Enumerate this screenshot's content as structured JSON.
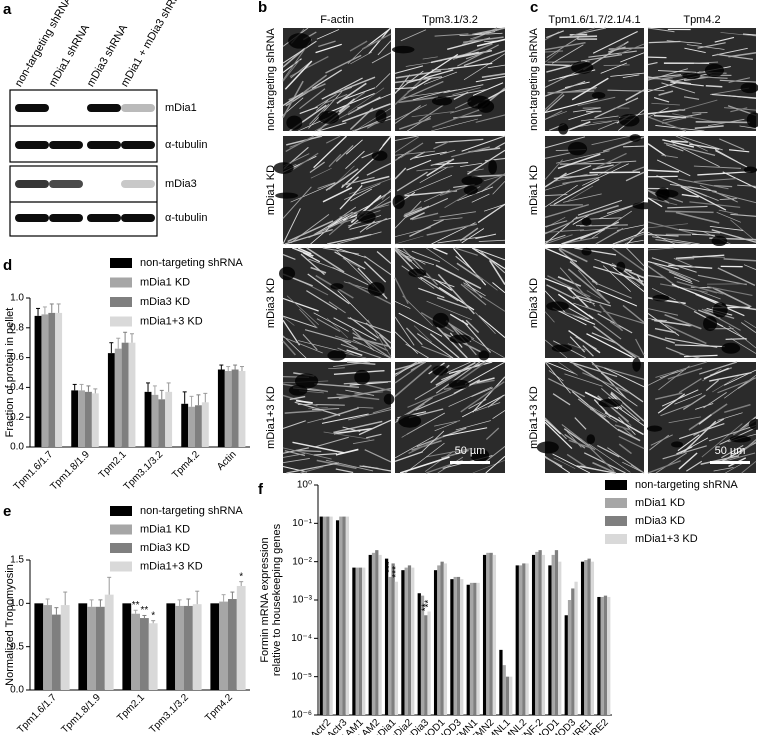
{
  "panels": {
    "a": {
      "label": "a",
      "lanes": [
        "non-targeting shRNA",
        "mDia1 shRNA",
        "mDia3 shRNA",
        "mDia1 + mDia3 shRNA"
      ],
      "rows": [
        "mDia1",
        "α-tubulin",
        "mDia3",
        "α-tubulin"
      ]
    },
    "b": {
      "label": "b",
      "columns": [
        "F-actin",
        "Tpm3.1/3.2"
      ],
      "rows": [
        "non-targeting shRNA",
        "mDia1 KD",
        "mDia3 KD",
        "mDia1+3 KD"
      ],
      "scale_bar": "50 µm"
    },
    "c": {
      "label": "c",
      "columns": [
        "Tpm1.6/1.7/2.1/4.1",
        "Tpm4.2"
      ],
      "rows": [
        "non-targeting shRNA",
        "mDia1 KD",
        "mDia3 KD",
        "mDia1+3 KD"
      ],
      "scale_bar": "50 µm"
    }
  },
  "chart_data": [
    {
      "type": "bar",
      "label": "d",
      "ylabel": "Fraction of protein in pellet",
      "categories": [
        "Tpm1.6/1.7",
        "Tpm1.8/1.9",
        "Tpm2.1",
        "Tpm3.1/3.2",
        "Tpm4.2",
        "Actin"
      ],
      "series": [
        {
          "name": "non-targeting shRNA",
          "color": "#000000",
          "values": [
            0.88,
            0.38,
            0.63,
            0.37,
            0.29,
            0.52
          ],
          "errors": [
            0.05,
            0.04,
            0.07,
            0.06,
            0.08,
            0.03
          ]
        },
        {
          "name": "mDia1 KD",
          "color": "#a6a6a6",
          "values": [
            0.89,
            0.38,
            0.66,
            0.35,
            0.27,
            0.51
          ],
          "errors": [
            0.05,
            0.04,
            0.07,
            0.06,
            0.07,
            0.03
          ]
        },
        {
          "name": "mDia3 KD",
          "color": "#7f7f7f",
          "values": [
            0.9,
            0.37,
            0.7,
            0.32,
            0.28,
            0.52
          ],
          "errors": [
            0.06,
            0.04,
            0.07,
            0.06,
            0.07,
            0.03
          ]
        },
        {
          "name": "mDia1+3 KD",
          "color": "#d9d9d9",
          "values": [
            0.9,
            0.36,
            0.7,
            0.37,
            0.3,
            0.51
          ],
          "errors": [
            0.06,
            0.03,
            0.06,
            0.06,
            0.06,
            0.03
          ]
        }
      ],
      "ylim": [
        0,
        1
      ],
      "yticks": [
        {
          "value": 0,
          "label": "0.0"
        },
        0.2,
        0.4,
        0.6,
        0.8,
        {
          "value": 1,
          "label": "1.0"
        }
      ],
      "grid": false,
      "log": false
    },
    {
      "type": "bar",
      "label": "e",
      "ylabel": "Normalized Tropomyosin",
      "categories": [
        "Tpm1.6/1.7",
        "Tpm1.8/1.9",
        "Tpm2.1",
        "Tpm3.1/3.2",
        "Tpm4.2"
      ],
      "series": [
        {
          "name": "non-targeting shRNA",
          "color": "#000000",
          "values": [
            1,
            1,
            1,
            1,
            1
          ],
          "errors": [
            0,
            0,
            0,
            0,
            0
          ]
        },
        {
          "name": "mDia1 KD",
          "color": "#a6a6a6",
          "values": [
            0.98,
            0.96,
            0.88,
            0.97,
            1.02
          ],
          "errors": [
            0.07,
            0.08,
            0.04,
            0.07,
            0.08
          ],
          "annotations": [
            null,
            null,
            "**",
            null,
            null
          ]
        },
        {
          "name": "mDia3 KD",
          "color": "#7f7f7f",
          "values": [
            0.87,
            0.96,
            0.83,
            0.97,
            1.05
          ],
          "errors": [
            0.08,
            0.08,
            0.03,
            0.08,
            0.08
          ],
          "annotations": [
            null,
            null,
            "**",
            null,
            null
          ]
        },
        {
          "name": "mDia1+3 KD",
          "color": "#d9d9d9",
          "values": [
            0.98,
            1.1,
            0.77,
            0.99,
            1.2
          ],
          "errors": [
            0.15,
            0.2,
            0.03,
            0.15,
            0.05
          ],
          "annotations": [
            null,
            null,
            "*",
            null,
            "*"
          ]
        }
      ],
      "ylim": [
        0,
        1.5
      ],
      "yticks": [
        {
          "value": 0,
          "label": "0.0"
        },
        0.5,
        {
          "value": 1,
          "label": "1.0"
        },
        1.5
      ],
      "grid": false,
      "log": false
    },
    {
      "type": "bar",
      "label": "f",
      "ylabel": [
        "Formin mRNA expression",
        "relative to housekeeping genes"
      ],
      "categories": [
        "Actr2",
        "Actr3",
        "DAAM1",
        "DAAM2",
        "mDia1",
        "mDia2",
        "mDia3",
        "FHOD1",
        "FHOD3",
        "FMN1",
        "FMN2",
        "FMNL1",
        "FMNL2",
        "INF-2",
        "LMOD1",
        "LMOD3",
        "SPIRE1",
        "SPIRE2"
      ],
      "series": [
        {
          "name": "non-targeting shRNA",
          "color": "#000000",
          "values": [
            0.15,
            0.12,
            0.007,
            0.015,
            0.012,
            0.006,
            0.0015,
            0.006,
            0.0035,
            0.0025,
            0.015,
            5e-05,
            0.008,
            0.015,
            0.008,
            0.0004,
            0.01,
            0.0012
          ]
        },
        {
          "name": "mDia1 KD",
          "color": "#a6a6a6",
          "values": [
            0.15,
            0.15,
            0.007,
            0.017,
            0.004,
            0.007,
            0.0013,
            0.008,
            0.004,
            0.0028,
            0.017,
            2e-05,
            0.008,
            0.018,
            0.015,
            0.001,
            0.011,
            0.0012
          ],
          "annotations": [
            null,
            null,
            null,
            null,
            "***",
            null,
            null,
            null,
            null,
            null,
            null,
            null,
            null,
            null,
            null,
            null,
            null,
            null
          ]
        },
        {
          "name": "mDia3 KD",
          "color": "#7f7f7f",
          "values": [
            0.15,
            0.15,
            0.007,
            0.02,
            0.009,
            0.008,
            0.0004,
            0.01,
            0.004,
            0.0028,
            0.017,
            1e-05,
            0.009,
            0.02,
            0.02,
            0.002,
            0.012,
            0.0013
          ],
          "annotations": [
            null,
            null,
            null,
            null,
            null,
            null,
            "**",
            null,
            null,
            null,
            null,
            null,
            null,
            null,
            null,
            null,
            null,
            null
          ]
        },
        {
          "name": "mDia1+3 KD",
          "color": "#d9d9d9",
          "values": [
            0.15,
            0.15,
            0.007,
            0.015,
            0.003,
            0.007,
            0.0005,
            0.009,
            0.0035,
            0.0028,
            0.015,
            1e-05,
            0.009,
            0.015,
            0.01,
            0.003,
            0.01,
            0.0012
          ],
          "annotations": [
            null,
            null,
            null,
            null,
            "***",
            null,
            "**",
            null,
            null,
            null,
            null,
            null,
            null,
            null,
            null,
            null,
            null,
            null
          ]
        }
      ],
      "ylim": [
        1e-06,
        1
      ],
      "yticks": [
        {
          "value": 1e-06,
          "label": "10⁻⁶"
        },
        {
          "value": 1e-05,
          "label": "10⁻⁵"
        },
        {
          "value": 0.0001,
          "label": "10⁻⁴"
        },
        {
          "value": 0.001,
          "label": "10⁻³"
        },
        {
          "value": 0.01,
          "label": "10⁻²"
        },
        {
          "value": 0.1,
          "label": "10⁻¹"
        },
        {
          "value": 1,
          "label": "10⁰"
        }
      ],
      "grid": false,
      "log": true
    }
  ]
}
